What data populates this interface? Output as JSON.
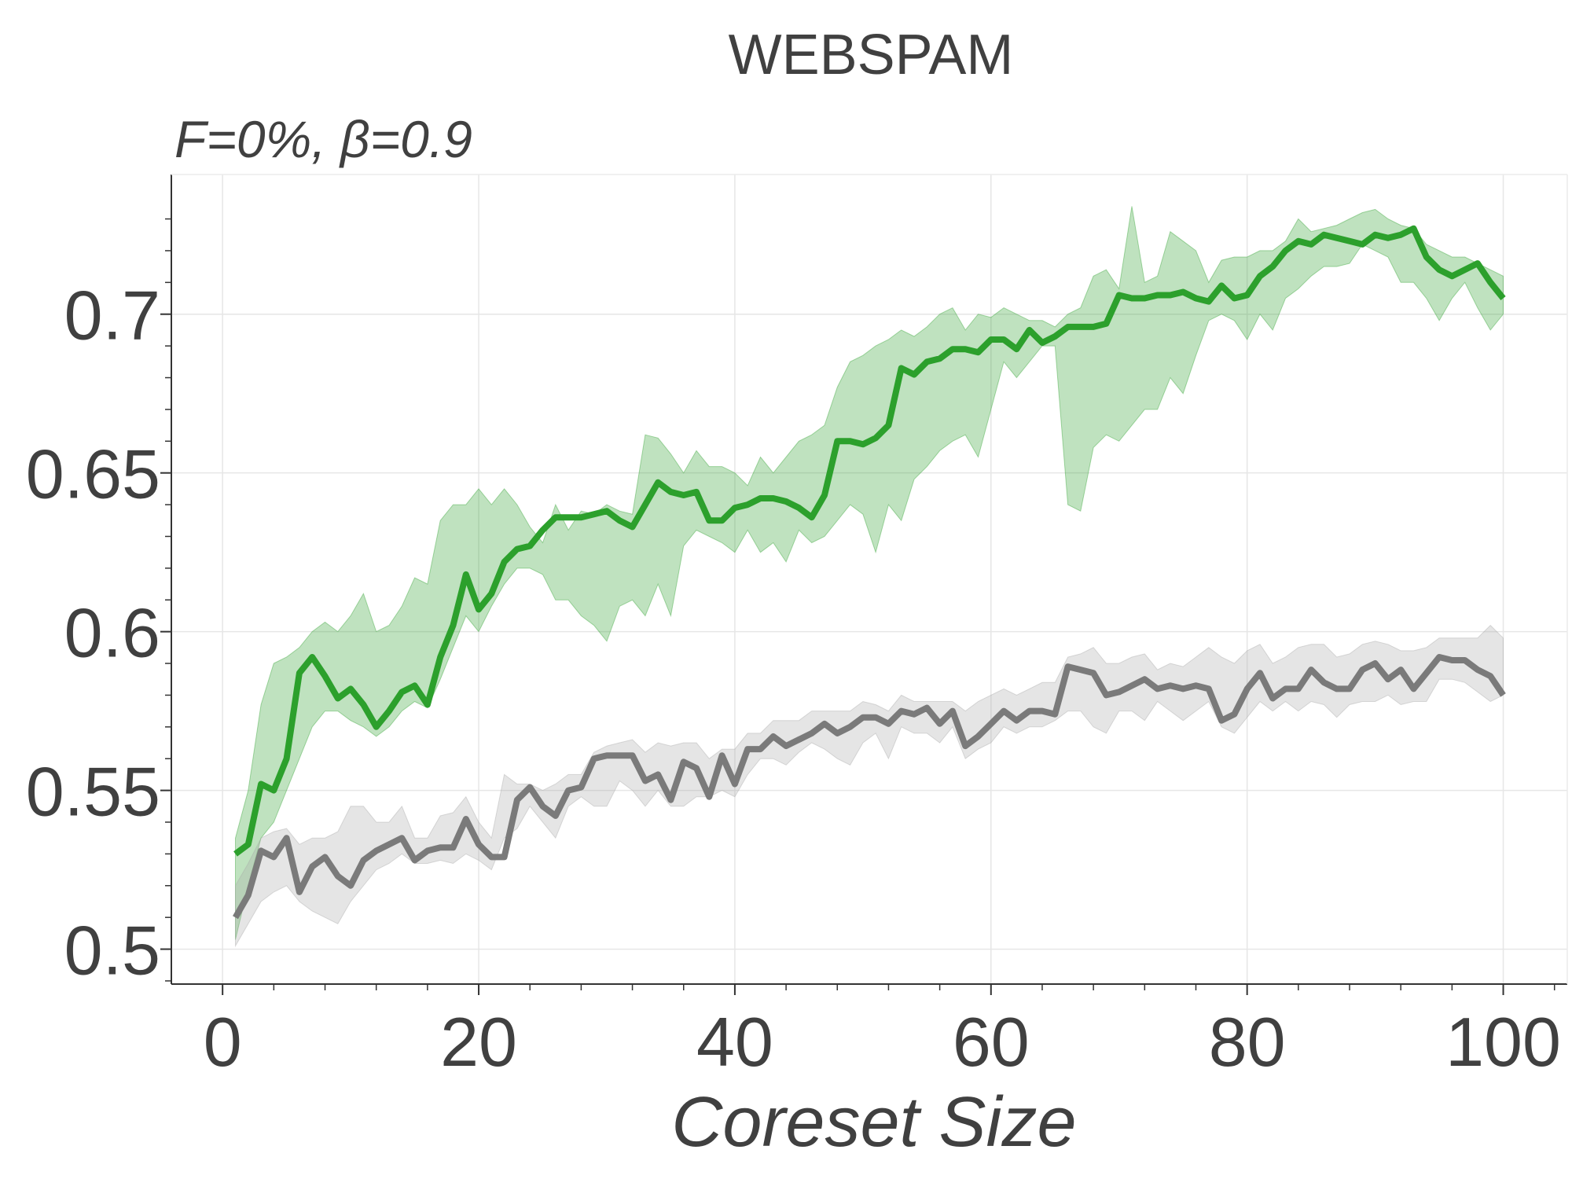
{
  "chart_data": {
    "type": "line",
    "title": "WEBSPAM",
    "subtitle": "F=0%,  β=0.9",
    "xlabel": "Coreset Size",
    "ylabel": "",
    "xlim": [
      -4,
      105
    ],
    "ylim": [
      0.489,
      0.744
    ],
    "xticks": [
      0,
      20,
      40,
      60,
      80,
      100
    ],
    "xtick_labels": [
      "0",
      "20",
      "40",
      "60",
      "80",
      "100"
    ],
    "yticks": [
      0.5,
      0.55,
      0.6,
      0.65,
      0.7
    ],
    "ytick_labels": [
      "0.5",
      "0.55",
      "0.6",
      "0.65",
      "0.7"
    ],
    "grid": true,
    "legend": "none",
    "series": [
      {
        "color": "#2ca02c",
        "band_color": "#2ca02c",
        "x": [
          1,
          2,
          3,
          4,
          5,
          6,
          7,
          8,
          9,
          10,
          11,
          12,
          13,
          14,
          15,
          16,
          17,
          18,
          19,
          20,
          21,
          22,
          23,
          24,
          25,
          26,
          27,
          28,
          29,
          30,
          31,
          32,
          33,
          34,
          35,
          36,
          37,
          38,
          39,
          40,
          41,
          42,
          43,
          44,
          45,
          46,
          47,
          48,
          49,
          50,
          51,
          52,
          53,
          54,
          55,
          56,
          57,
          58,
          59,
          60,
          61,
          62,
          63,
          64,
          65,
          66,
          67,
          68,
          69,
          70,
          71,
          72,
          73,
          74,
          75,
          76,
          77,
          78,
          79,
          80,
          81,
          82,
          83,
          84,
          85,
          86,
          87,
          88,
          89,
          90,
          91,
          92,
          93,
          94,
          95,
          96,
          97,
          98,
          99,
          100
        ],
        "mean": [
          0.53,
          0.533,
          0.552,
          0.55,
          0.56,
          0.587,
          0.592,
          0.586,
          0.579,
          0.582,
          0.577,
          0.57,
          0.575,
          0.581,
          0.583,
          0.577,
          0.592,
          0.602,
          0.618,
          0.607,
          0.612,
          0.622,
          0.626,
          0.627,
          0.632,
          0.636,
          0.636,
          0.636,
          0.637,
          0.638,
          0.635,
          0.633,
          0.64,
          0.647,
          0.644,
          0.643,
          0.644,
          0.635,
          0.635,
          0.639,
          0.64,
          0.642,
          0.642,
          0.641,
          0.639,
          0.636,
          0.643,
          0.66,
          0.66,
          0.659,
          0.661,
          0.665,
          0.683,
          0.681,
          0.685,
          0.686,
          0.689,
          0.689,
          0.688,
          0.692,
          0.692,
          0.689,
          0.695,
          0.691,
          0.693,
          0.696,
          0.696,
          0.696,
          0.697,
          0.706,
          0.705,
          0.705,
          0.706,
          0.706,
          0.707,
          0.705,
          0.704,
          0.709,
          0.705,
          0.706,
          0.712,
          0.715,
          0.72,
          0.723,
          0.722,
          0.725,
          0.724,
          0.723,
          0.722,
          0.725,
          0.724,
          0.725,
          0.727,
          0.718,
          0.714,
          0.712,
          0.714,
          0.716,
          0.71,
          0.705
        ],
        "lower": [
          0.503,
          0.52,
          0.535,
          0.54,
          0.55,
          0.56,
          0.57,
          0.575,
          0.575,
          0.572,
          0.57,
          0.567,
          0.57,
          0.575,
          0.578,
          0.576,
          0.585,
          0.595,
          0.605,
          0.6,
          0.608,
          0.615,
          0.62,
          0.62,
          0.618,
          0.61,
          0.61,
          0.605,
          0.602,
          0.597,
          0.608,
          0.61,
          0.605,
          0.615,
          0.605,
          0.627,
          0.632,
          0.63,
          0.628,
          0.625,
          0.632,
          0.625,
          0.628,
          0.622,
          0.632,
          0.628,
          0.63,
          0.635,
          0.64,
          0.637,
          0.625,
          0.64,
          0.635,
          0.648,
          0.652,
          0.657,
          0.66,
          0.662,
          0.655,
          0.67,
          0.685,
          0.68,
          0.685,
          0.69,
          0.69,
          0.64,
          0.638,
          0.658,
          0.662,
          0.66,
          0.665,
          0.67,
          0.67,
          0.68,
          0.675,
          0.687,
          0.698,
          0.7,
          0.698,
          0.692,
          0.7,
          0.695,
          0.705,
          0.708,
          0.712,
          0.715,
          0.715,
          0.716,
          0.722,
          0.72,
          0.718,
          0.71,
          0.71,
          0.705,
          0.698,
          0.705,
          0.71,
          0.702,
          0.695,
          0.7
        ],
        "upper": [
          0.535,
          0.55,
          0.577,
          0.59,
          0.592,
          0.595,
          0.6,
          0.603,
          0.6,
          0.605,
          0.612,
          0.6,
          0.602,
          0.608,
          0.617,
          0.615,
          0.635,
          0.64,
          0.64,
          0.645,
          0.64,
          0.645,
          0.64,
          0.633,
          0.628,
          0.64,
          0.632,
          0.638,
          0.637,
          0.64,
          0.638,
          0.637,
          0.662,
          0.661,
          0.656,
          0.65,
          0.657,
          0.652,
          0.652,
          0.65,
          0.646,
          0.655,
          0.65,
          0.655,
          0.66,
          0.662,
          0.665,
          0.677,
          0.685,
          0.687,
          0.69,
          0.692,
          0.695,
          0.693,
          0.696,
          0.7,
          0.702,
          0.695,
          0.7,
          0.699,
          0.702,
          0.7,
          0.698,
          0.698,
          0.696,
          0.7,
          0.702,
          0.712,
          0.714,
          0.708,
          0.734,
          0.71,
          0.712,
          0.726,
          0.723,
          0.72,
          0.71,
          0.717,
          0.718,
          0.718,
          0.72,
          0.72,
          0.723,
          0.73,
          0.726,
          0.727,
          0.728,
          0.73,
          0.732,
          0.733,
          0.73,
          0.728,
          0.727,
          0.722,
          0.72,
          0.718,
          0.718,
          0.716,
          0.714,
          0.712
        ]
      },
      {
        "color": "#7a7a7a",
        "band_color": "#a8a8a8",
        "x": [
          1,
          2,
          3,
          4,
          5,
          6,
          7,
          8,
          9,
          10,
          11,
          12,
          13,
          14,
          15,
          16,
          17,
          18,
          19,
          20,
          21,
          22,
          23,
          24,
          25,
          26,
          27,
          28,
          29,
          30,
          31,
          32,
          33,
          34,
          35,
          36,
          37,
          38,
          39,
          40,
          41,
          42,
          43,
          44,
          45,
          46,
          47,
          48,
          49,
          50,
          51,
          52,
          53,
          54,
          55,
          56,
          57,
          58,
          59,
          60,
          61,
          62,
          63,
          64,
          65,
          66,
          67,
          68,
          69,
          70,
          71,
          72,
          73,
          74,
          75,
          76,
          77,
          78,
          79,
          80,
          81,
          82,
          83,
          84,
          85,
          86,
          87,
          88,
          89,
          90,
          91,
          92,
          93,
          94,
          95,
          96,
          97,
          98,
          99,
          100
        ],
        "mean": [
          0.51,
          0.517,
          0.531,
          0.529,
          0.535,
          0.518,
          0.526,
          0.529,
          0.523,
          0.52,
          0.528,
          0.531,
          0.533,
          0.535,
          0.528,
          0.531,
          0.532,
          0.532,
          0.541,
          0.533,
          0.529,
          0.529,
          0.547,
          0.551,
          0.545,
          0.542,
          0.55,
          0.551,
          0.56,
          0.561,
          0.561,
          0.561,
          0.553,
          0.555,
          0.547,
          0.559,
          0.557,
          0.548,
          0.561,
          0.552,
          0.563,
          0.563,
          0.567,
          0.564,
          0.566,
          0.568,
          0.571,
          0.568,
          0.57,
          0.573,
          0.573,
          0.571,
          0.575,
          0.574,
          0.576,
          0.571,
          0.575,
          0.564,
          0.567,
          0.571,
          0.575,
          0.572,
          0.575,
          0.575,
          0.574,
          0.589,
          0.588,
          0.587,
          0.58,
          0.581,
          0.583,
          0.585,
          0.582,
          0.583,
          0.582,
          0.583,
          0.582,
          0.572,
          0.574,
          0.582,
          0.587,
          0.579,
          0.582,
          0.582,
          0.588,
          0.584,
          0.582,
          0.582,
          0.588,
          0.59,
          0.585,
          0.588,
          0.582,
          0.587,
          0.592,
          0.591,
          0.591,
          0.588,
          0.586,
          0.58
        ],
        "lower": [
          0.501,
          0.508,
          0.515,
          0.518,
          0.52,
          0.515,
          0.512,
          0.51,
          0.508,
          0.515,
          0.52,
          0.525,
          0.527,
          0.53,
          0.527,
          0.527,
          0.528,
          0.527,
          0.53,
          0.528,
          0.525,
          0.535,
          0.538,
          0.545,
          0.54,
          0.535,
          0.545,
          0.548,
          0.545,
          0.545,
          0.553,
          0.55,
          0.545,
          0.55,
          0.545,
          0.545,
          0.548,
          0.548,
          0.55,
          0.548,
          0.555,
          0.56,
          0.56,
          0.558,
          0.562,
          0.565,
          0.563,
          0.56,
          0.558,
          0.565,
          0.568,
          0.56,
          0.57,
          0.568,
          0.568,
          0.565,
          0.57,
          0.56,
          0.563,
          0.565,
          0.57,
          0.568,
          0.57,
          0.57,
          0.572,
          0.575,
          0.575,
          0.57,
          0.568,
          0.575,
          0.575,
          0.572,
          0.578,
          0.575,
          0.572,
          0.575,
          0.578,
          0.57,
          0.568,
          0.573,
          0.578,
          0.575,
          0.578,
          0.575,
          0.578,
          0.577,
          0.573,
          0.577,
          0.578,
          0.578,
          0.58,
          0.577,
          0.578,
          0.578,
          0.585,
          0.585,
          0.584,
          0.581,
          0.578,
          0.58
        ],
        "upper": [
          0.52,
          0.527,
          0.535,
          0.537,
          0.538,
          0.533,
          0.535,
          0.535,
          0.537,
          0.545,
          0.545,
          0.54,
          0.54,
          0.545,
          0.535,
          0.535,
          0.542,
          0.543,
          0.548,
          0.54,
          0.535,
          0.555,
          0.552,
          0.552,
          0.55,
          0.552,
          0.555,
          0.555,
          0.562,
          0.564,
          0.565,
          0.566,
          0.562,
          0.565,
          0.564,
          0.565,
          0.565,
          0.56,
          0.563,
          0.563,
          0.568,
          0.568,
          0.572,
          0.572,
          0.572,
          0.575,
          0.575,
          0.575,
          0.575,
          0.578,
          0.577,
          0.575,
          0.58,
          0.578,
          0.578,
          0.578,
          0.578,
          0.575,
          0.578,
          0.58,
          0.582,
          0.58,
          0.582,
          0.584,
          0.584,
          0.592,
          0.593,
          0.595,
          0.59,
          0.59,
          0.592,
          0.593,
          0.588,
          0.59,
          0.589,
          0.592,
          0.595,
          0.592,
          0.59,
          0.594,
          0.596,
          0.59,
          0.592,
          0.595,
          0.596,
          0.596,
          0.592,
          0.593,
          0.596,
          0.597,
          0.596,
          0.594,
          0.594,
          0.595,
          0.598,
          0.598,
          0.598,
          0.598,
          0.602,
          0.598
        ]
      }
    ]
  }
}
